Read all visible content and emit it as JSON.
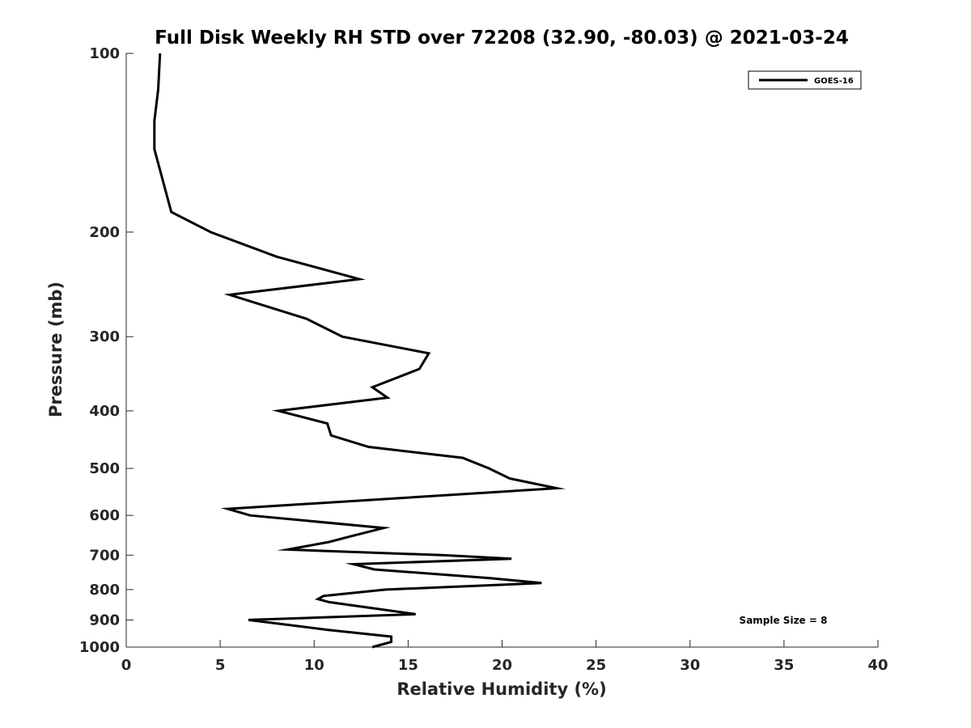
{
  "chart_data": {
    "type": "line",
    "title": "Full Disk Weekly RH STD over 72208 (32.90, -80.03) @ 2021-03-24",
    "xlabel": "Relative Humidity (%)",
    "ylabel": "Pressure (mb)",
    "xlim": [
      0,
      40
    ],
    "ylim": [
      100,
      1000
    ],
    "y_scale": "log",
    "y_reversed": true,
    "x_ticks": [
      "0",
      "5",
      "10",
      "15",
      "20",
      "25",
      "30",
      "35",
      "40"
    ],
    "y_ticks": [
      "100",
      "200",
      "300",
      "400",
      "500",
      "600",
      "700",
      "800",
      "900",
      "1000"
    ],
    "grid": false,
    "legend": {
      "placement": "top-right",
      "entries": [
        "GOES-16"
      ]
    },
    "annotation": "Sample Size = 8",
    "series": [
      {
        "name": "GOES-16",
        "color": "#000000",
        "x": [
          1.8,
          1.7,
          1.5,
          1.5,
          2.4,
          4.5,
          8.0,
          12.4,
          5.5,
          9.6,
          11.5,
          16.1,
          15.6,
          13.1,
          13.9,
          8.1,
          10.7,
          10.9,
          12.9,
          17.9,
          19.3,
          20.4,
          22.9,
          5.4,
          6.6,
          13.7,
          12.0,
          10.8,
          8.6,
          16.8,
          20.5,
          12.1,
          13.2,
          19.3,
          22.1,
          13.8,
          10.5,
          10.2,
          10.8,
          15.4,
          6.5,
          10.7,
          14.1,
          14.1,
          13.1
        ],
        "y": [
          100,
          115,
          130,
          145,
          185,
          200,
          220,
          240,
          255,
          280,
          300,
          320,
          340,
          365,
          380,
          400,
          420,
          440,
          460,
          480,
          500,
          520,
          540,
          585,
          600,
          630,
          650,
          665,
          685,
          700,
          710,
          725,
          740,
          765,
          780,
          800,
          820,
          830,
          840,
          880,
          900,
          935,
          960,
          980,
          1000
        ]
      }
    ]
  }
}
